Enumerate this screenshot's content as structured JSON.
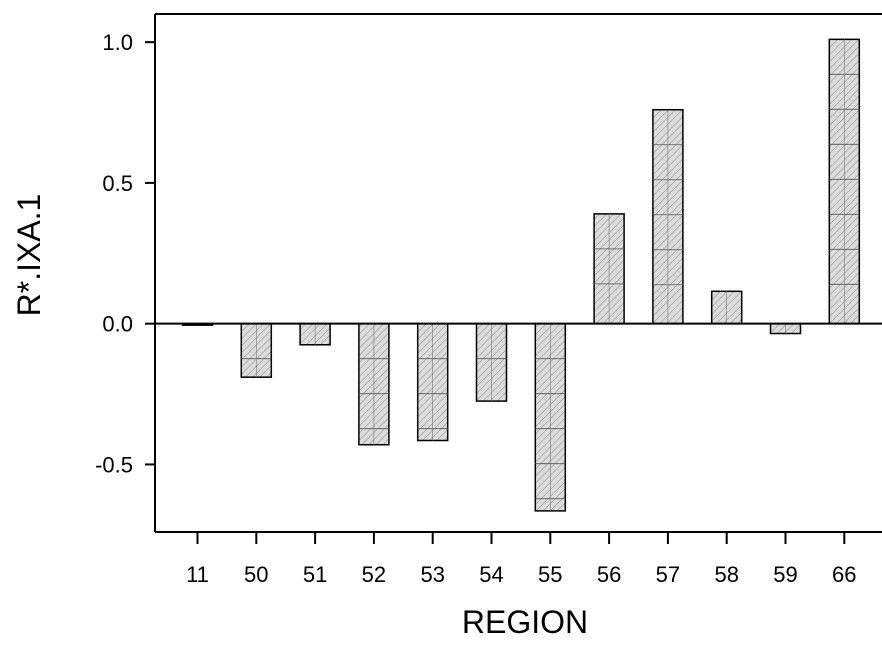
{
  "chart_data": {
    "type": "bar",
    "xlabel": "REGION",
    "ylabel": "R*.IXA.1",
    "categories": [
      "11",
      "50",
      "51",
      "52",
      "53",
      "54",
      "55",
      "56",
      "57",
      "58",
      "59",
      "66"
    ],
    "values": [
      0.0,
      -0.19,
      -0.075,
      -0.43,
      -0.415,
      -0.275,
      -0.665,
      0.39,
      0.76,
      0.115,
      -0.035,
      1.01
    ],
    "ylim": [
      -0.74,
      1.1
    ],
    "yticks": [
      -0.5,
      0.0,
      0.5,
      1.0
    ],
    "ytick_labels": [
      "-0.5",
      "0.0",
      "0.5",
      "1.0"
    ],
    "zero_line": true,
    "grid": false,
    "bar_fill": "#d9d9d9",
    "bar_hatch_color": "#7a7a7a",
    "axis_color": "#000000"
  }
}
